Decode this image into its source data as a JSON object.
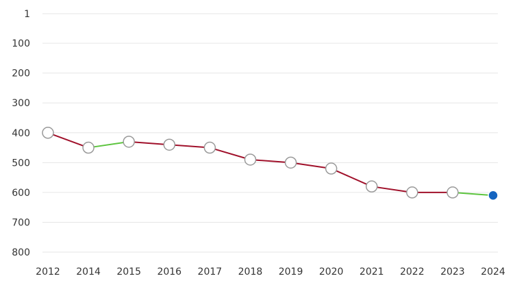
{
  "chart_data": {
    "type": "line",
    "x": [
      "2012",
      "2014",
      "2015",
      "2016",
      "2017",
      "2018",
      "2019",
      "2020",
      "2021",
      "2022",
      "2023",
      "2024"
    ],
    "values": [
      400,
      450,
      430,
      440,
      450,
      490,
      500,
      520,
      580,
      600,
      600,
      610
    ],
    "y_ticks": [
      1,
      100,
      200,
      300,
      400,
      500,
      600,
      700,
      800
    ],
    "y_tick_labels": [
      "1",
      "100",
      "200",
      "300",
      "400",
      "500",
      "600",
      "700",
      "800"
    ],
    "ylim": [
      1,
      800
    ],
    "y_inverted": true,
    "title": "",
    "xlabel": "",
    "ylabel": "",
    "grid": true,
    "colors": {
      "worse": "#a0102a",
      "better": "#5cc43e",
      "marker_fill": "#ffffff",
      "marker_stroke": "#999999",
      "current_marker": "#1565c0",
      "grid": "#e6e6e6",
      "text": "#333333"
    }
  }
}
